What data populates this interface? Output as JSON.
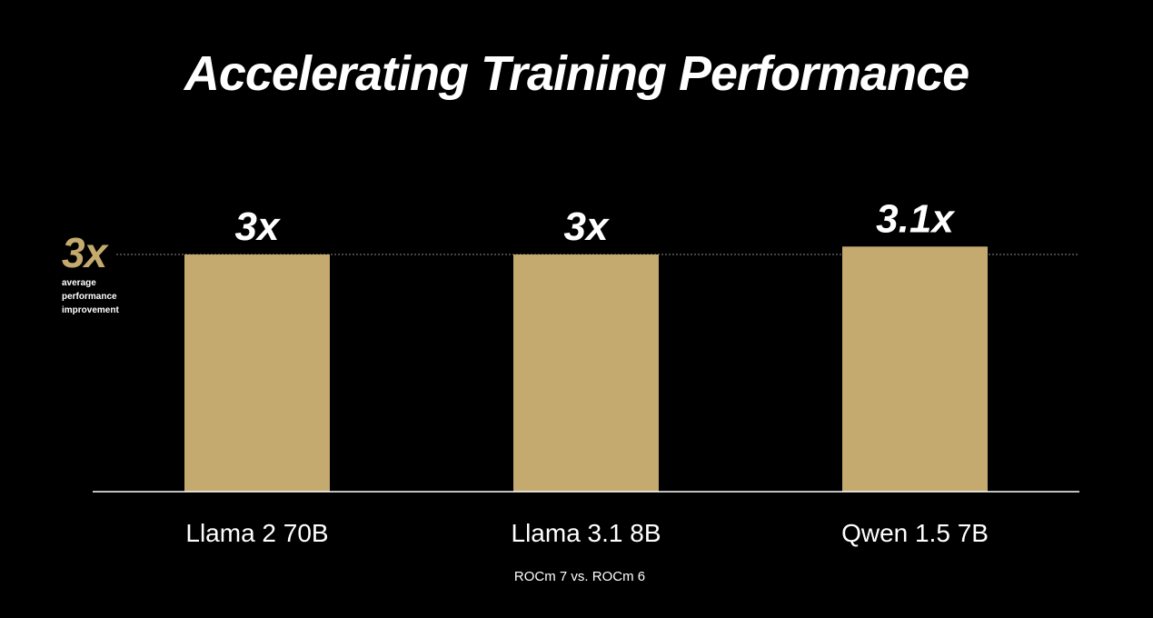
{
  "chart_data": {
    "type": "bar",
    "title": "Accelerating Training Performance",
    "categories": [
      "Llama 2 70B",
      "Llama 3.1 8B",
      "Qwen 1.5 7B"
    ],
    "values": [
      3,
      3,
      3.1
    ],
    "data_labels": [
      "3x",
      "3x",
      "3.1x"
    ],
    "reference_line": {
      "value": 3,
      "value_label": "3x",
      "label": "average performance improvement",
      "style": "dotted"
    },
    "footnote": "ROCm 7 vs. ROCm 6",
    "xlabel": "",
    "ylabel": "",
    "ylim": [
      0,
      3
    ],
    "grid": false,
    "legend": "none"
  },
  "colors": {
    "background": "#000000",
    "bar": "#c4aa6e",
    "accent": "#c4aa6e",
    "text": "#ffffff",
    "axis": "#ffffff",
    "reference_line": "#8a8a8a"
  }
}
